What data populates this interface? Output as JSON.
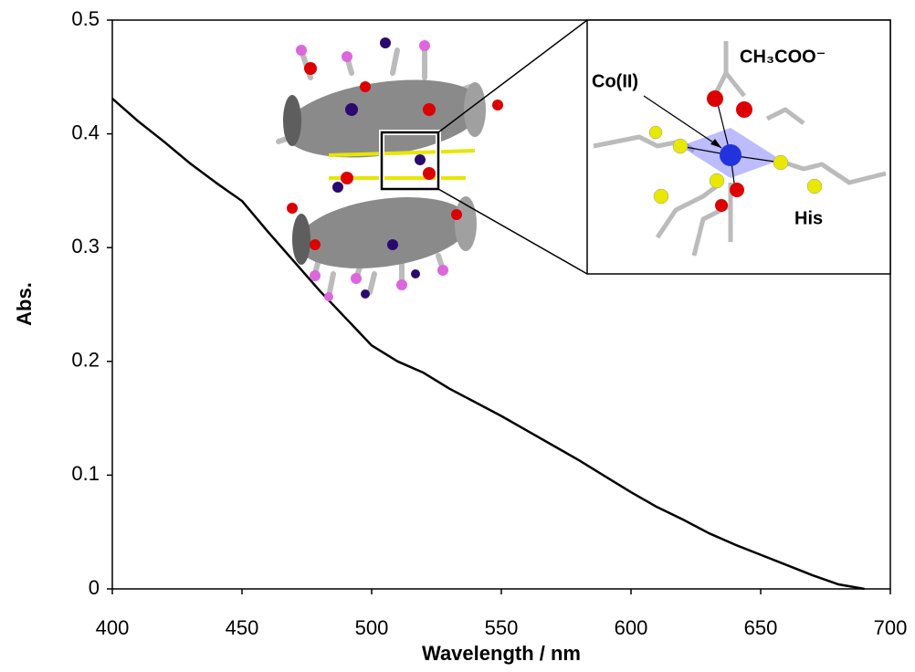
{
  "chart_data": {
    "type": "line",
    "xlabel": "Wavelength / nm",
    "ylabel": "Abs.",
    "annotations": [
      "Co(II)",
      "CH₃COO⁻",
      "His"
    ],
    "x": [
      400,
      410,
      420,
      430,
      440,
      450,
      460,
      470,
      480,
      490,
      500,
      510,
      520,
      530,
      540,
      550,
      560,
      570,
      580,
      590,
      600,
      610,
      620,
      630,
      640,
      650,
      660,
      670,
      680,
      690
    ],
    "values": [
      0.431,
      0.411,
      0.393,
      0.374,
      0.357,
      0.341,
      0.314,
      0.288,
      0.262,
      0.238,
      0.214,
      0.2,
      0.19,
      0.176,
      0.164,
      0.152,
      0.139,
      0.126,
      0.113,
      0.099,
      0.085,
      0.072,
      0.061,
      0.049,
      0.039,
      0.03,
      0.021,
      0.012,
      0.004,
      0.0
    ],
    "color": "#000000",
    "xlim": [
      400,
      700
    ],
    "xticks": [
      400,
      450,
      500,
      550,
      600,
      650,
      700
    ],
    "ylim": [
      0,
      0.5
    ],
    "yticks": [
      0,
      0.1,
      0.2,
      0.3,
      0.4,
      0.5
    ],
    "grid": false
  }
}
